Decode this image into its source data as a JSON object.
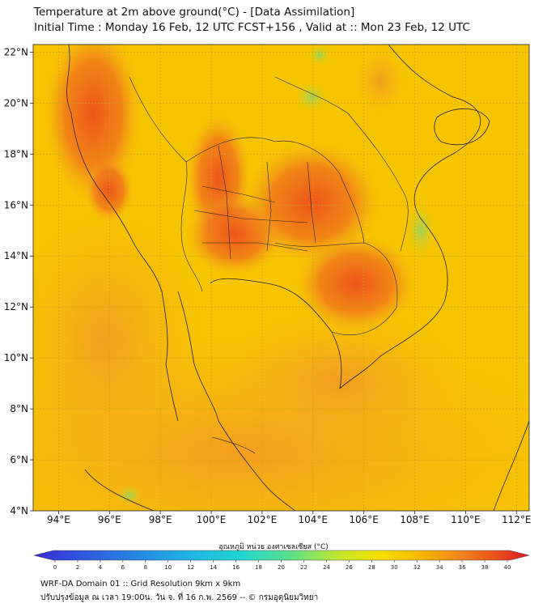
{
  "title_line1": "Temperature at 2m above ground(°C) - [Data Assimilation]",
  "title_line2": "Initial Time : Monday 16 Feb, 12 UTC FCST+156 , Valid at :: Mon 23 Feb, 12 UTC",
  "map": {
    "lon_range": [
      93,
      112.5
    ],
    "lat_range": [
      4,
      22.3
    ],
    "lon_ticks": [
      94,
      96,
      98,
      100,
      102,
      104,
      106,
      108,
      110,
      112
    ],
    "lon_tick_labels": [
      "94°E",
      "96°E",
      "98°E",
      "100°E",
      "102°E",
      "104°E",
      "106°E",
      "108°E",
      "110°E",
      "112°E"
    ],
    "lat_ticks": [
      4,
      6,
      8,
      10,
      12,
      14,
      16,
      18,
      20,
      22
    ],
    "lat_tick_labels": [
      "4°N",
      "6°N",
      "8°N",
      "10°N",
      "12°N",
      "14°N",
      "16°N",
      "18°N",
      "20°N",
      "22°N"
    ],
    "colors": {
      "background": "#f6c400",
      "sea_orange": "#f5a623",
      "hot": "#ee5a1a",
      "very_hot": "#e8451c",
      "cool": "#a6db3c",
      "border": "#222222",
      "grid": "#c8a020"
    }
  },
  "colorbar": {
    "label": "อุณหภูมิ หน่วย องศาเซลเซียส (°C)",
    "ticks": [
      "0",
      "2",
      "4",
      "6",
      "8",
      "10",
      "12",
      "14",
      "16",
      "18",
      "20",
      "22",
      "24",
      "26",
      "28",
      "30",
      "32",
      "34",
      "36",
      "38",
      "40"
    ]
  },
  "footer_line1": "WRF-DA Domain 01 :: Grid Resolution 9km x 9km",
  "footer_line2": "ปรับปรุงข้อมูล ณ เวลา 19:00น. วัน จ. ที่ 16 ก.พ. 2569 -- © กรมอุตุนิยมวิทยา"
}
